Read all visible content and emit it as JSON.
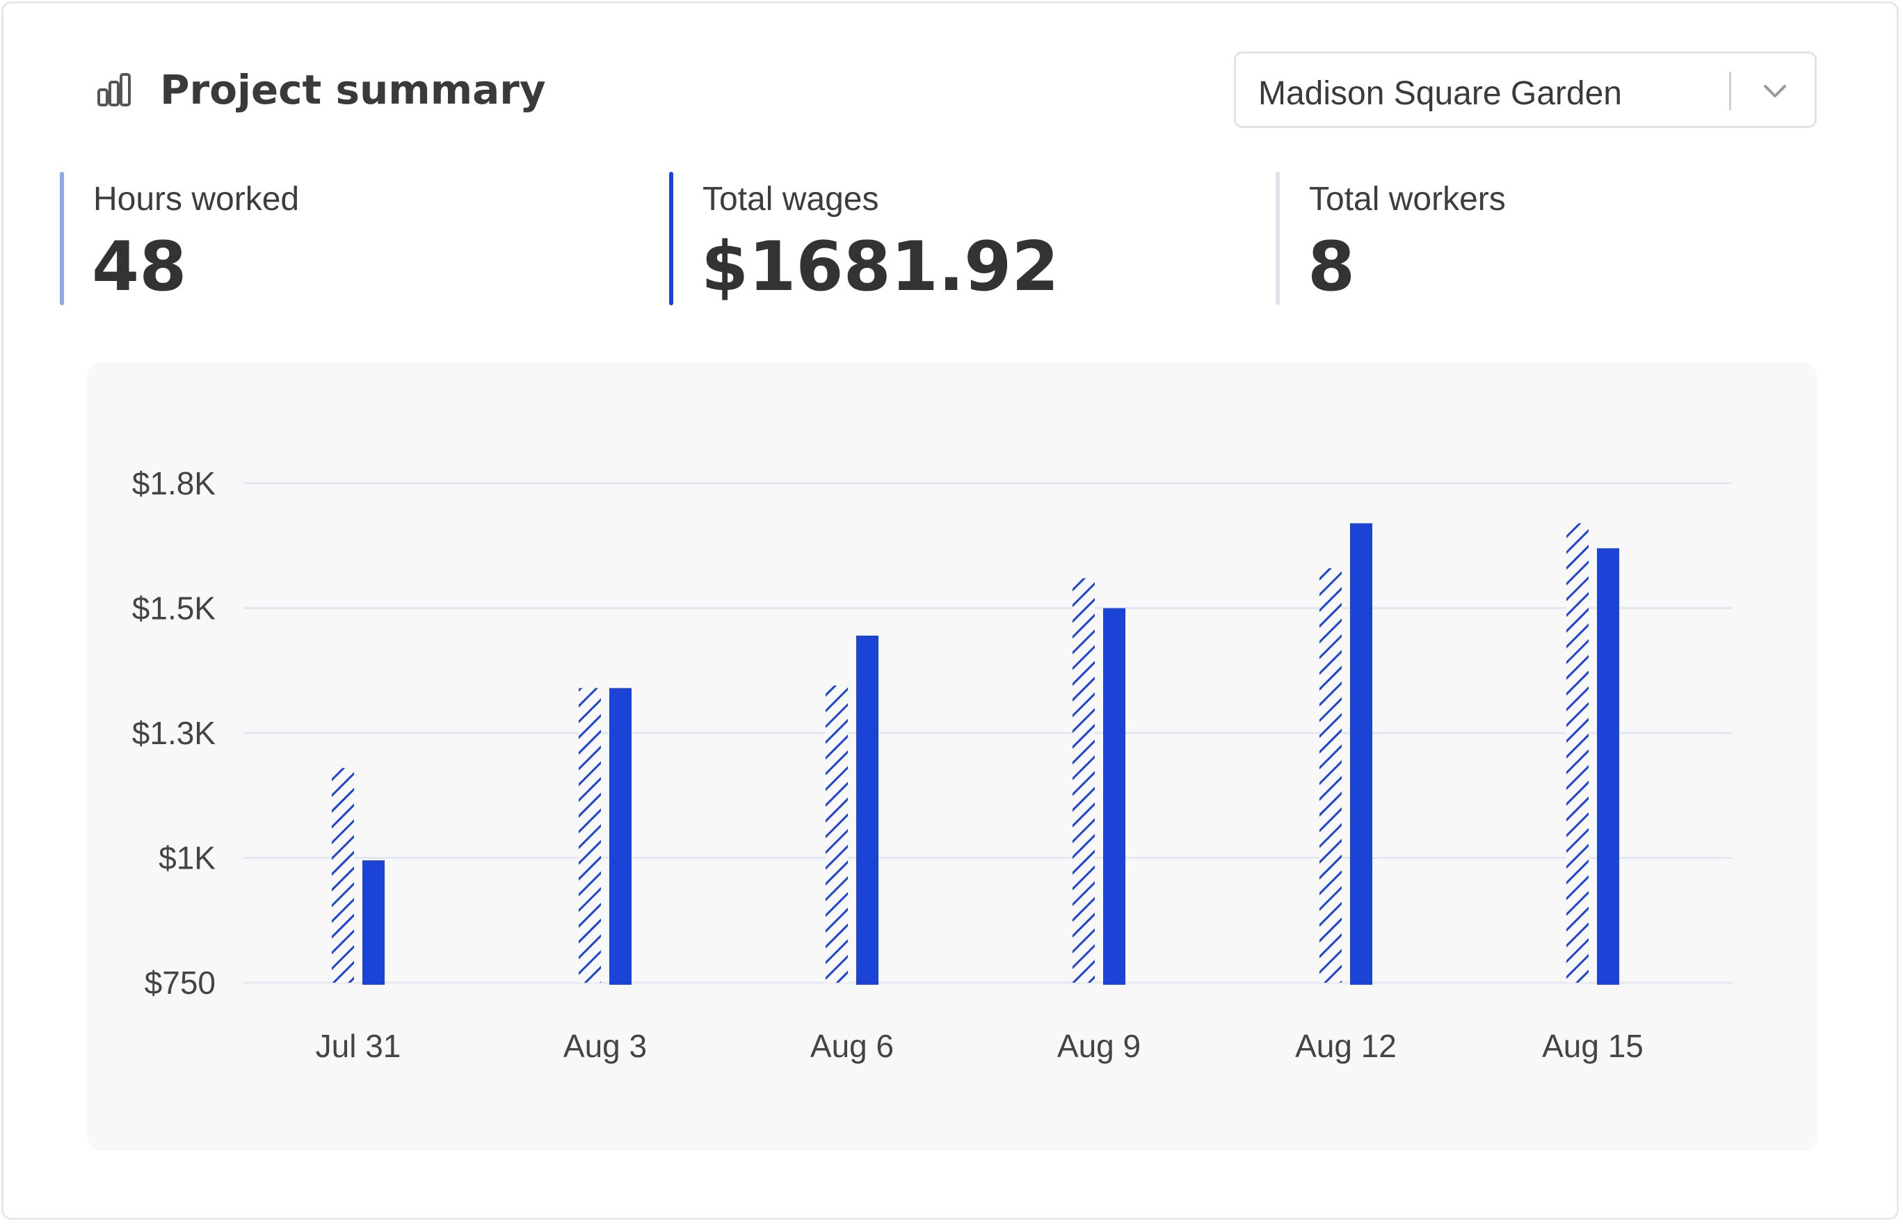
{
  "header": {
    "title": "Project summary",
    "title_icon": "bar-chart-icon",
    "project_select": {
      "value": "Madison Square Garden",
      "icon": "chevron-down-icon"
    }
  },
  "stats": [
    {
      "label": "Hours worked",
      "value": "48",
      "accent": "#8fa8e6"
    },
    {
      "label": "Total wages",
      "value": "$1681.92",
      "accent": "#1b44d6"
    },
    {
      "label": "Total workers",
      "value": "8",
      "accent": "#e2e2ea"
    }
  ],
  "colors": {
    "primary": "#1b44d6",
    "gridline": "#e4e6f2",
    "panel_background": "#f8f8f8"
  },
  "chart_data": {
    "type": "bar",
    "categories": [
      "Jul 31",
      "Aug 3",
      "Aug 6",
      "Aug 9",
      "Aug 12",
      "Aug 15"
    ],
    "series": [
      {
        "style": "hatched",
        "values": [
          1180,
          1340,
          1345,
          1560,
          1580,
          1670
        ]
      },
      {
        "style": "solid",
        "values": [
          995,
          1340,
          1445,
          1500,
          1670,
          1620
        ]
      }
    ],
    "yticks": [
      "$750",
      "$1K",
      "$1.3K",
      "$1.5K",
      "$1.8K"
    ],
    "ytick_values": [
      750,
      1000,
      1250,
      1500,
      1750
    ],
    "ylim": [
      750,
      1750
    ],
    "grid": true,
    "title": "",
    "xlabel": "",
    "ylabel": ""
  }
}
